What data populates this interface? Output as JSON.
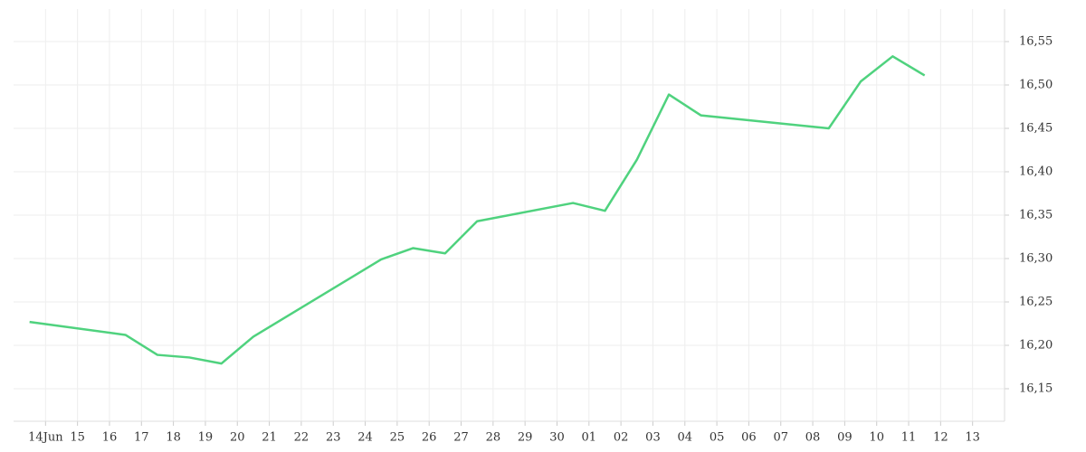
{
  "chart_data": {
    "type": "line",
    "x": [
      "Jun 13 12:00",
      "Jun 16 12:00",
      "Jun 17 12:00",
      "Jun 18 12:00",
      "Jun 19 12:00",
      "Jun 20 12:00",
      "Jun 24 12:00",
      "Jun 25 12:00",
      "Jun 26 12:00",
      "Jun 27 12:00",
      "Jun 30 12:00",
      "Jul 01 12:00",
      "Jul 02 12:00",
      "Jul 03 12:00",
      "Jul 04 12:00",
      "Jul 08 12:00",
      "Jul 09 12:00",
      "Jul 10 12:00",
      "Jul 11 12:00"
    ],
    "series": [
      {
        "color": "#4fd27e",
        "values": [
          16.227,
          16.212,
          16.189,
          16.186,
          16.179,
          16.21,
          16.299,
          16.312,
          16.306,
          16.343,
          16.364,
          16.355,
          16.414,
          16.489,
          16.465,
          16.45,
          16.504,
          16.533,
          16.511
        ]
      }
    ],
    "xlim": [
      "Jun 13",
      "Jul 14"
    ],
    "xticks": [
      {
        "value": "Jun 14",
        "label": "14Jun"
      },
      {
        "value": "Jun 15",
        "label": "15"
      },
      {
        "value": "Jun 16",
        "label": "16"
      },
      {
        "value": "Jun 17",
        "label": "17"
      },
      {
        "value": "Jun 18",
        "label": "18"
      },
      {
        "value": "Jun 19",
        "label": "19"
      },
      {
        "value": "Jun 20",
        "label": "20"
      },
      {
        "value": "Jun 21",
        "label": "21"
      },
      {
        "value": "Jun 22",
        "label": "22"
      },
      {
        "value": "Jun 23",
        "label": "23"
      },
      {
        "value": "Jun 24",
        "label": "24"
      },
      {
        "value": "Jun 25",
        "label": "25"
      },
      {
        "value": "Jun 26",
        "label": "26"
      },
      {
        "value": "Jun 27",
        "label": "27"
      },
      {
        "value": "Jun 28",
        "label": "28"
      },
      {
        "value": "Jun 29",
        "label": "29"
      },
      {
        "value": "Jun 30",
        "label": "30"
      },
      {
        "value": "Jul 01",
        "label": "01"
      },
      {
        "value": "Jul 02",
        "label": "02"
      },
      {
        "value": "Jul 03",
        "label": "03"
      },
      {
        "value": "Jul 04",
        "label": "04"
      },
      {
        "value": "Jul 05",
        "label": "05"
      },
      {
        "value": "Jul 06",
        "label": "06"
      },
      {
        "value": "Jul 07",
        "label": "07"
      },
      {
        "value": "Jul 08",
        "label": "08"
      },
      {
        "value": "Jul 09",
        "label": "09"
      },
      {
        "value": "Jul 10",
        "label": "10"
      },
      {
        "value": "Jul 11",
        "label": "11"
      },
      {
        "value": "Jul 12",
        "label": "12"
      },
      {
        "value": "Jul 13",
        "label": "13"
      }
    ],
    "ylim": [
      16.1125,
      16.5875
    ],
    "yticks": [
      {
        "value": 16.15,
        "label": "16,15"
      },
      {
        "value": 16.2,
        "label": "16,20"
      },
      {
        "value": 16.25,
        "label": "16,25"
      },
      {
        "value": 16.3,
        "label": "16,30"
      },
      {
        "value": 16.35,
        "label": "16,35"
      },
      {
        "value": 16.4,
        "label": "16,40"
      },
      {
        "value": 16.45,
        "label": "16,45"
      },
      {
        "value": 16.5,
        "label": "16,50"
      },
      {
        "value": 16.55,
        "label": "16,55"
      }
    ],
    "grid": true
  }
}
